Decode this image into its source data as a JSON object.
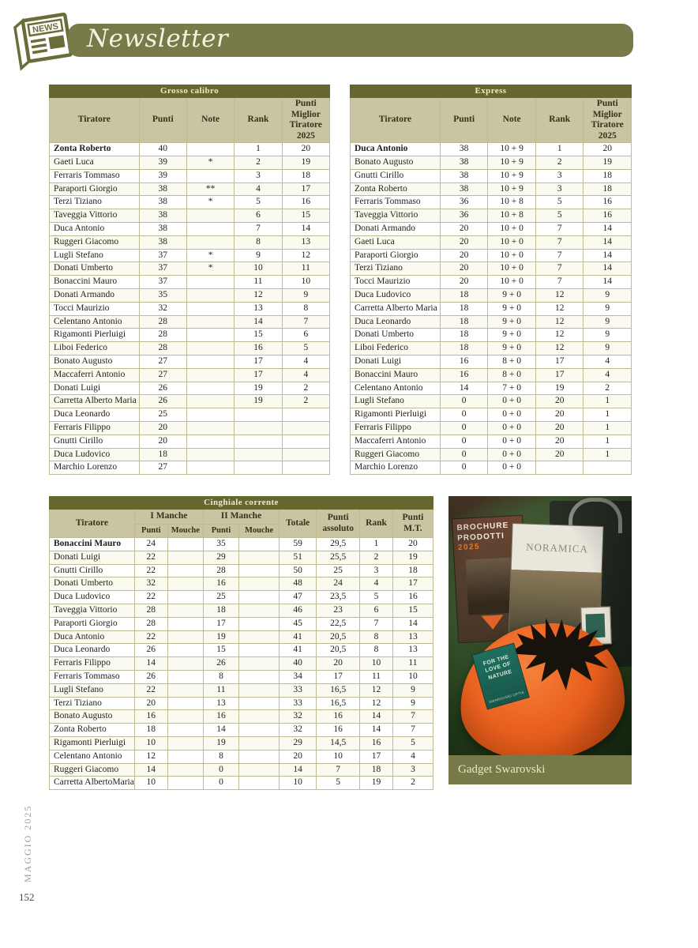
{
  "page": {
    "title": "Newsletter",
    "news_icon_label": "NEWS",
    "issue": "MAGGIO 2025",
    "page_number": "152"
  },
  "colors": {
    "olive_banner": "#787a49",
    "olive_dark": "#65672f",
    "khaki_header": "#c9c4a1",
    "beanie_orange": "#e85c1e"
  },
  "tables": {
    "grosso": {
      "title": "Grosso calibro",
      "headers": [
        "Tiratore",
        "Punti",
        "Note",
        "Rank",
        "Punti Miglior Tiratore 2025"
      ],
      "rows": [
        [
          "Zonta Roberto",
          "40",
          "",
          "1",
          "20"
        ],
        [
          "Gaeti Luca",
          "39",
          "*",
          "2",
          "19"
        ],
        [
          "Ferraris Tommaso",
          "39",
          "",
          "3",
          "18"
        ],
        [
          "Paraporti Giorgio",
          "38",
          "**",
          "4",
          "17"
        ],
        [
          "Terzi Tiziano",
          "38",
          "*",
          "5",
          "16"
        ],
        [
          "Taveggia Vittorio",
          "38",
          "",
          "6",
          "15"
        ],
        [
          "Duca Antonio",
          "38",
          "",
          "7",
          "14"
        ],
        [
          "Ruggeri Giacomo",
          "38",
          "",
          "8",
          "13"
        ],
        [
          "Lugli Stefano",
          "37",
          "*",
          "9",
          "12"
        ],
        [
          "Donati Umberto",
          "37",
          "*",
          "10",
          "11"
        ],
        [
          "Bonaccini Mauro",
          "37",
          "",
          "11",
          "10"
        ],
        [
          "Donati Armando",
          "35",
          "",
          "12",
          "9"
        ],
        [
          "Tocci Maurizio",
          "32",
          "",
          "13",
          "8"
        ],
        [
          "Celentano Antonio",
          "28",
          "",
          "14",
          "7"
        ],
        [
          "Rigamonti Pierluigi",
          "28",
          "",
          "15",
          "6"
        ],
        [
          "Liboi Federico",
          "28",
          "",
          "16",
          "5"
        ],
        [
          "Bonato Augusto",
          "27",
          "",
          "17",
          "4"
        ],
        [
          "Maccaferri Antonio",
          "27",
          "",
          "17",
          "4"
        ],
        [
          "Donati Luigi",
          "26",
          "",
          "19",
          "2"
        ],
        [
          "Carretta Alberto Maria",
          "26",
          "",
          "19",
          "2"
        ],
        [
          "Duca Leonardo",
          "25",
          "",
          "",
          ""
        ],
        [
          "Ferraris Filippo",
          "20",
          "",
          "",
          ""
        ],
        [
          "Gnutti Cirillo",
          "20",
          "",
          "",
          ""
        ],
        [
          "Duca Ludovico",
          "18",
          "",
          "",
          ""
        ],
        [
          "Marchio Lorenzo",
          "27",
          "",
          "",
          ""
        ]
      ]
    },
    "express": {
      "title": "Express",
      "headers": [
        "Tiratore",
        "Punti",
        "Note",
        "Rank",
        "Punti Miglior Tiratore 2025"
      ],
      "rows": [
        [
          "Duca Antonio",
          "38",
          "10 + 9",
          "1",
          "20"
        ],
        [
          "Bonato Augusto",
          "38",
          "10 + 9",
          "2",
          "19"
        ],
        [
          "Gnutti Cirillo",
          "38",
          "10 + 9",
          "3",
          "18"
        ],
        [
          "Zonta Roberto",
          "38",
          "10 + 9",
          "3",
          "18"
        ],
        [
          "Ferraris Tommaso",
          "36",
          "10 + 8",
          "5",
          "16"
        ],
        [
          "Taveggia Vittorio",
          "36",
          "10 + 8",
          "5",
          "16"
        ],
        [
          "Donati Armando",
          "20",
          "10 + 0",
          "7",
          "14"
        ],
        [
          "Gaeti Luca",
          "20",
          "10 + 0",
          "7",
          "14"
        ],
        [
          "Paraporti Giorgio",
          "20",
          "10 + 0",
          "7",
          "14"
        ],
        [
          "Terzi Tiziano",
          "20",
          "10 + 0",
          "7",
          "14"
        ],
        [
          "Tocci Maurizio",
          "20",
          "10 + 0",
          "7",
          "14"
        ],
        [
          "Duca Ludovico",
          "18",
          "9 + 0",
          "12",
          "9"
        ],
        [
          "Carretta Alberto Maria",
          "18",
          "9 + 0",
          "12",
          "9"
        ],
        [
          "Duca Leonardo",
          "18",
          "9 + 0",
          "12",
          "9"
        ],
        [
          "Donati Umberto",
          "18",
          "9 + 0",
          "12",
          "9"
        ],
        [
          "Liboi Federico",
          "18",
          "9 + 0",
          "12",
          "9"
        ],
        [
          "Donati Luigi",
          "16",
          "8 + 0",
          "17",
          "4"
        ],
        [
          "Bonaccini Mauro",
          "16",
          "8 + 0",
          "17",
          "4"
        ],
        [
          "Celentano Antonio",
          "14",
          "7 + 0",
          "19",
          "2"
        ],
        [
          "Lugli Stefano",
          "0",
          "0 + 0",
          "20",
          "1"
        ],
        [
          "Rigamonti Pierluigi",
          "0",
          "0 + 0",
          "20",
          "1"
        ],
        [
          "Ferraris Filippo",
          "0",
          "0 + 0",
          "20",
          "1"
        ],
        [
          "Maccaferri Antonio",
          "0",
          "0 + 0",
          "20",
          "1"
        ],
        [
          "Ruggeri Giacomo",
          "0",
          "0 + 0",
          "20",
          "1"
        ],
        [
          "Marchio Lorenzo",
          "0",
          "0 + 0",
          "",
          ""
        ]
      ]
    },
    "cinghiale": {
      "title": "Cinghiale corrente",
      "header": {
        "tiratore": "Tiratore",
        "manche1": "I Manche",
        "manche2": "II Manche",
        "sub_punti": "Punti",
        "sub_mouche": "Mouche",
        "totale": "Totale",
        "punti_assoluto": "Punti assoluto",
        "rank": "Rank",
        "punti_mt": "Punti M.T."
      },
      "rows": [
        [
          "Bonaccini Mauro",
          "24",
          "",
          "35",
          "",
          "59",
          "29,5",
          "1",
          "20"
        ],
        [
          "Donati Luigi",
          "22",
          "",
          "29",
          "",
          "51",
          "25,5",
          "2",
          "19"
        ],
        [
          "Gnutti Cirillo",
          "22",
          "",
          "28",
          "",
          "50",
          "25",
          "3",
          "18"
        ],
        [
          "Donati Umberto",
          "32",
          "",
          "16",
          "",
          "48",
          "24",
          "4",
          "17"
        ],
        [
          "Duca Ludovico",
          "22",
          "",
          "25",
          "",
          "47",
          "23,5",
          "5",
          "16"
        ],
        [
          "Taveggia Vittorio",
          "28",
          "",
          "18",
          "",
          "46",
          "23",
          "6",
          "15"
        ],
        [
          "Paraporti Giorgio",
          "28",
          "",
          "17",
          "",
          "45",
          "22,5",
          "7",
          "14"
        ],
        [
          "Duca Antonio",
          "22",
          "",
          "19",
          "",
          "41",
          "20,5",
          "8",
          "13"
        ],
        [
          "Duca Leonardo",
          "26",
          "",
          "15",
          "",
          "41",
          "20,5",
          "8",
          "13"
        ],
        [
          "Ferraris Filippo",
          "14",
          "",
          "26",
          "",
          "40",
          "20",
          "10",
          "11"
        ],
        [
          "Ferraris Tommaso",
          "26",
          "",
          "8",
          "",
          "34",
          "17",
          "11",
          "10"
        ],
        [
          "Lugli Stefano",
          "22",
          "",
          "11",
          "",
          "33",
          "16,5",
          "12",
          "9"
        ],
        [
          "Terzi Tiziano",
          "20",
          "",
          "13",
          "",
          "33",
          "16,5",
          "12",
          "9"
        ],
        [
          "Bonato Augusto",
          "16",
          "",
          "16",
          "",
          "32",
          "16",
          "14",
          "7"
        ],
        [
          "Zonta Roberto",
          "18",
          "",
          "14",
          "",
          "32",
          "16",
          "14",
          "7"
        ],
        [
          "Rigamonti Pierluigi",
          "10",
          "",
          "19",
          "",
          "29",
          "14,5",
          "16",
          "5"
        ],
        [
          "Celentano Antonio",
          "12",
          "",
          "8",
          "",
          "20",
          "10",
          "17",
          "4"
        ],
        [
          "Ruggeri Giacomo",
          "14",
          "",
          "0",
          "",
          "14",
          "7",
          "18",
          "3"
        ],
        [
          "Carretta AlbertoMaria",
          "10",
          "",
          "0",
          "",
          "10",
          "5",
          "19",
          "2"
        ]
      ]
    }
  },
  "photo": {
    "caption": "Gadget Swarovski",
    "brochure_left_line1": "BROCHURE",
    "brochure_left_line2": "PRODOTTI",
    "brochure_left_year": "2025",
    "brochure_right_title": "NORAMICA",
    "booklet_text": "FOR THE LOVE OF NATURE",
    "booklet_brand": "SWAROVSKI OPTIK"
  }
}
